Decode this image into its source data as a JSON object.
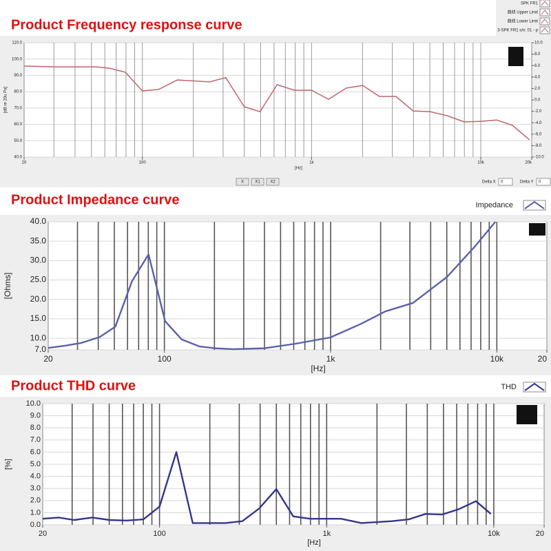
{
  "chart_data": [
    {
      "type": "line",
      "title": "Product Frequency response curve",
      "xlabel": "[Hz]",
      "ylabel": "[dB re 20u Pa]",
      "log_x": true,
      "x": [
        20,
        30.5,
        53.4,
        63.8,
        79.3,
        100,
        125,
        161,
        250,
        311,
        400,
        496,
        626,
        790,
        1000,
        1260,
        1601,
        2006,
        2515,
        3149,
        3977,
        5018,
        6329,
        7990,
        10085,
        12400,
        15400,
        19400
      ],
      "series": [
        {
          "name": "SPK FR1",
          "color": "#c0646e",
          "values": [
            95.7,
            95.2,
            95.2,
            94.4,
            91.9,
            80.5,
            81.4,
            87.2,
            86,
            88.6,
            70.8,
            67.8,
            84.3,
            80.9,
            80.9,
            75.4,
            82.2,
            83.8,
            77.1,
            77.1,
            68.2,
            67.8,
            65.3,
            61.5,
            61.9,
            62.7,
            59.4,
            50.5
          ]
        }
      ],
      "legend_items": [
        "曲线 Upper Limit",
        "曲线 Lower Limit",
        "3-SPK FR1 s/n: 01 - p"
      ],
      "xlim": [
        20,
        20000
      ],
      "xticks": [
        20,
        100,
        {
          "value": 1000,
          "label": "1k"
        },
        {
          "value": 10000,
          "label": "10k"
        },
        {
          "value": 20000,
          "label": "20k"
        }
      ],
      "ylim": [
        40,
        110
      ],
      "yticks": [
        {
          "value": 40,
          "label": "40.0"
        },
        {
          "value": 50,
          "label": "50.0"
        },
        {
          "value": 60,
          "label": "60.0"
        },
        {
          "value": 70,
          "label": "70.0"
        },
        {
          "value": 80,
          "label": "80.0"
        },
        {
          "value": 90,
          "label": "90.0"
        },
        {
          "value": 100,
          "label": "100.0"
        },
        {
          "value": 110,
          "label": "110.0"
        }
      ],
      "y2lim": [
        -10,
        10
      ],
      "y2ticks": [
        {
          "value": -10,
          "label": "-10.0"
        },
        {
          "value": -8,
          "label": "-8.0"
        },
        {
          "value": -6,
          "label": "-6.0"
        },
        {
          "value": -4,
          "label": "-4.0"
        },
        {
          "value": -2,
          "label": "-2.0"
        },
        {
          "value": 0,
          "label": "0.0"
        },
        {
          "value": 2,
          "label": "2.0"
        },
        {
          "value": 4,
          "label": "4.0"
        },
        {
          "value": 6,
          "label": "6.0"
        },
        {
          "value": 8,
          "label": "8.0"
        },
        {
          "value": 10,
          "label": "10.0"
        }
      ],
      "buttons": [
        "X",
        "X1",
        "X2"
      ],
      "delta_x_label": "Delta X",
      "delta_x": "0",
      "delta_y_label": "Delta Y",
      "delta_y": "0"
    },
    {
      "type": "line",
      "title": "Product Impedance curve",
      "xlabel": "[Hz]",
      "ylabel": "[Ohms]",
      "log_x": true,
      "x": [
        20,
        25.4,
        31.6,
        40.8,
        50.7,
        63.9,
        80.3,
        101,
        127,
        162,
        203,
        260,
        399,
        617,
        994,
        1525,
        2131,
        3131,
        5020,
        7366,
        9800
      ],
      "series": [
        {
          "name": "Impedance",
          "color": "#5b60aa",
          "values": [
            7.5,
            8.1,
            8.8,
            10.3,
            13.0,
            24.7,
            31.6,
            14.4,
            9.7,
            7.9,
            7.4,
            7.2,
            7.4,
            8.6,
            10.2,
            13.7,
            16.9,
            19.1,
            25.8,
            33.6,
            40
          ]
        }
      ],
      "xlim": [
        20,
        20000
      ],
      "xticks": [
        20,
        100,
        {
          "value": 1000,
          "label": "1k"
        },
        {
          "value": 10000,
          "label": "10k"
        },
        {
          "value": 20000,
          "label": "20"
        }
      ],
      "ylim": [
        7,
        40
      ],
      "yticks": [
        {
          "value": 7,
          "label": "7.0"
        },
        {
          "value": 10,
          "label": "10.0"
        },
        {
          "value": 15,
          "label": "15.0"
        },
        {
          "value": 20,
          "label": "20.0"
        },
        {
          "value": 25,
          "label": "25.0"
        },
        {
          "value": 30,
          "label": "30.0"
        },
        {
          "value": 35,
          "label": "35.0"
        },
        {
          "value": 40,
          "label": "40.0"
        }
      ]
    },
    {
      "type": "line",
      "title": "Product THD curve",
      "xlabel": "[Hz]",
      "ylabel": "[%]",
      "log_x": true,
      "x": [
        20,
        24.9,
        30.9,
        39.6,
        50.3,
        63.5,
        80.1,
        100,
        126,
        158,
        248,
        313,
        395,
        500,
        631,
        796,
        1218,
        1612,
        2455,
        3094,
        3900,
        4917,
        6200,
        7815,
        9613
      ],
      "series": [
        {
          "name": "THD",
          "color": "#34348a",
          "values": [
            0.5,
            0.6,
            0.4,
            0.6,
            0.4,
            0.35,
            0.45,
            1.5,
            6.0,
            0.15,
            0.15,
            0.3,
            1.35,
            2.95,
            0.7,
            0.5,
            0.5,
            0.15,
            0.3,
            0.45,
            0.9,
            0.85,
            1.3,
            1.95,
            0.9
          ]
        }
      ],
      "xlim": [
        20,
        20000
      ],
      "xticks": [
        20,
        100,
        {
          "value": 1000,
          "label": "1k"
        },
        {
          "value": 10000,
          "label": "10k"
        },
        {
          "value": 20000,
          "label": "20"
        }
      ],
      "ylim": [
        0,
        10
      ],
      "yticks": [
        {
          "value": 0,
          "label": "0.0"
        },
        {
          "value": 1,
          "label": "1.0"
        },
        {
          "value": 2,
          "label": "2.0"
        },
        {
          "value": 3,
          "label": "3.0"
        },
        {
          "value": 4,
          "label": "4.0"
        },
        {
          "value": 5,
          "label": "5.0"
        },
        {
          "value": 6,
          "label": "6.0"
        },
        {
          "value": 7,
          "label": "7.0"
        },
        {
          "value": 8,
          "label": "8.0"
        },
        {
          "value": 9,
          "label": "9.0"
        },
        {
          "value": 10,
          "label": "10.0"
        }
      ]
    }
  ]
}
